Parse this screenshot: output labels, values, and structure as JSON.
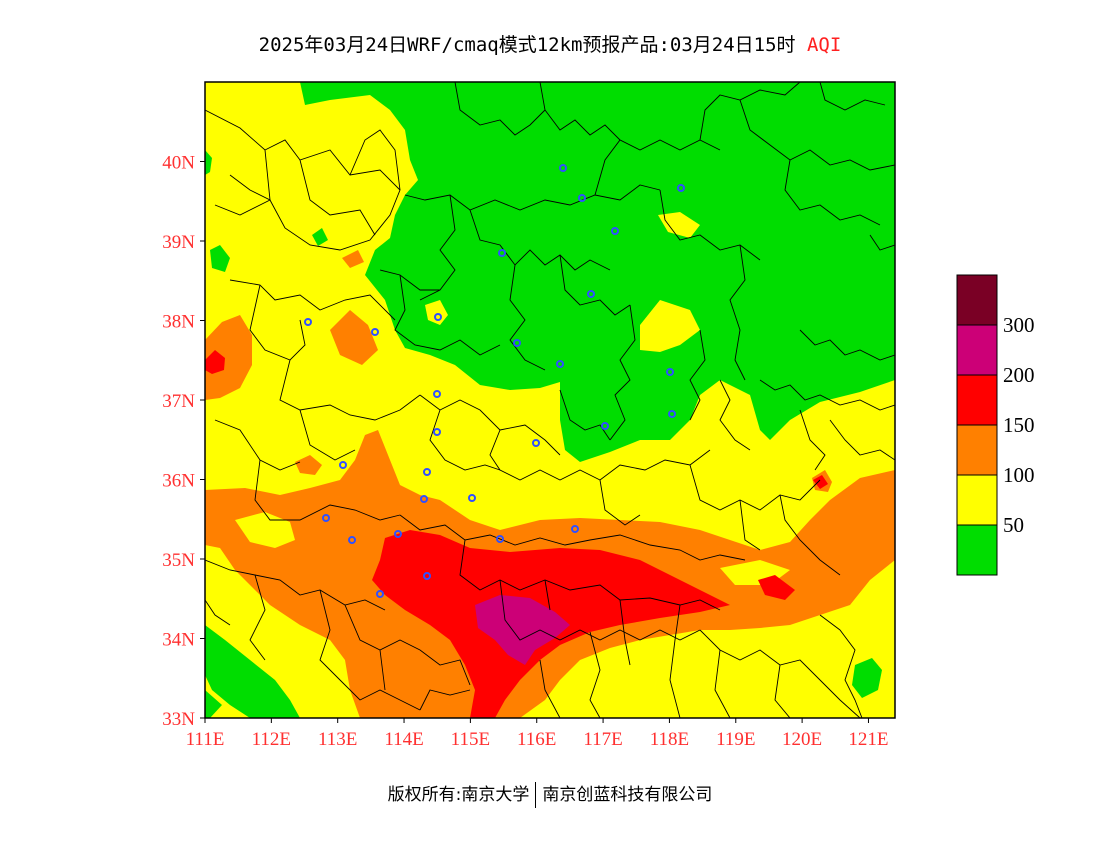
{
  "header": {
    "title_prefix": "2025年03月24日WRF/cmaq模式12km预报产品:03月24日15时",
    "title_tag": "AQI"
  },
  "map": {
    "lon_ticks": [
      "111E",
      "112E",
      "113E",
      "114E",
      "115E",
      "116E",
      "117E",
      "118E",
      "119E",
      "120E",
      "121E"
    ],
    "lat_ticks": [
      "33N",
      "34N",
      "35N",
      "36N",
      "37N",
      "38N",
      "39N",
      "40N"
    ],
    "lon_range": [
      111,
      121.4
    ],
    "lat_range": [
      33,
      41
    ]
  },
  "legend": {
    "levels": [
      {
        "label": "",
        "color": "#00dd00"
      },
      {
        "label": "50",
        "color": "#ffff00"
      },
      {
        "label": "100",
        "color": "#ff8000"
      },
      {
        "label": "150",
        "color": "#ff0000"
      },
      {
        "label": "200",
        "color": "#cc0077"
      },
      {
        "label": "300",
        "color": "#7a0025"
      }
    ]
  },
  "footer": {
    "left": "版权所有:南京大学",
    "right": "南京创蓝科技有限公司"
  }
}
